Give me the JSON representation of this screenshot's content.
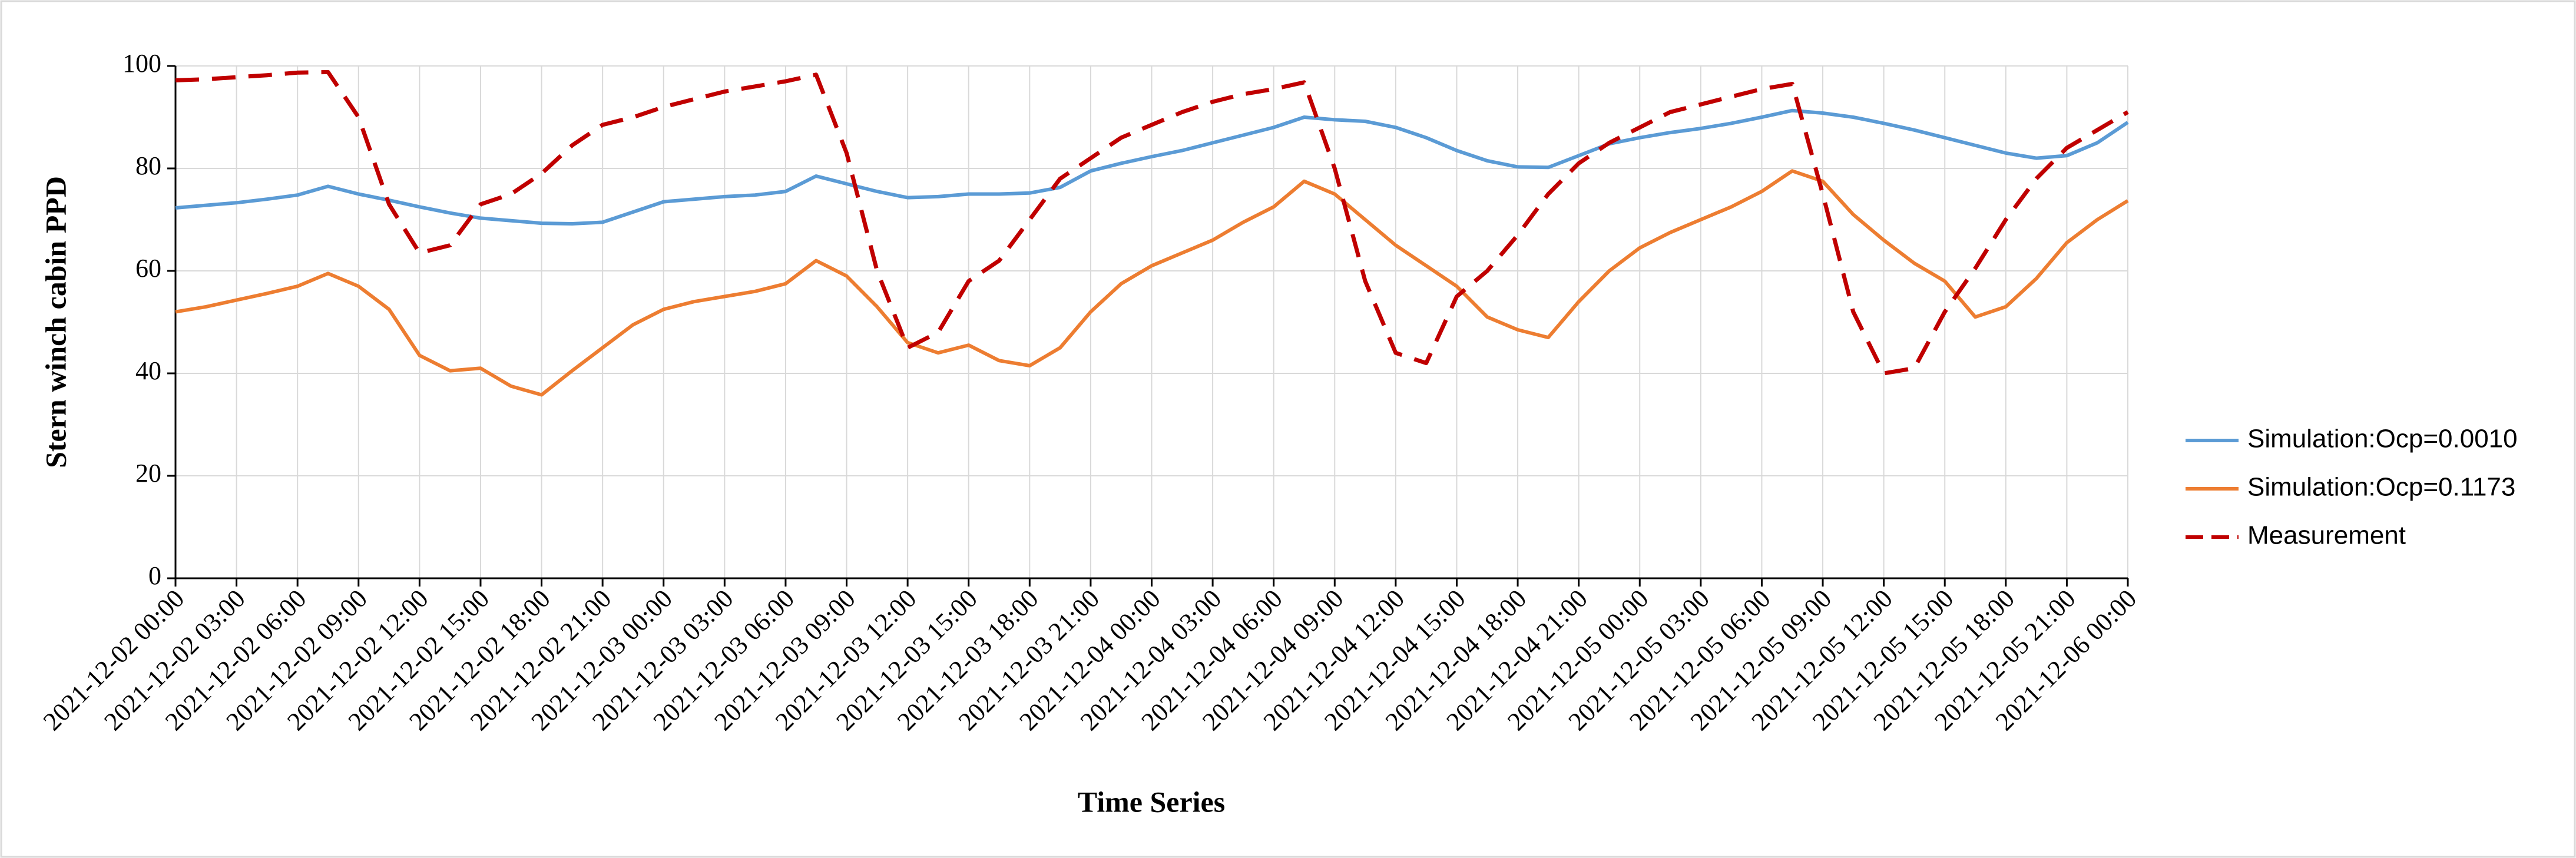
{
  "chart_data": {
    "type": "line",
    "ylabel": "Stern winch cabin PPD",
    "xlabel": "Time Series",
    "x": [
      "2021-12-02 00:00",
      "2021-12-02 01:30",
      "2021-12-02 03:00",
      "2021-12-02 04:30",
      "2021-12-02 06:00",
      "2021-12-02 07:30",
      "2021-12-02 09:00",
      "2021-12-02 10:30",
      "2021-12-02 12:00",
      "2021-12-02 13:30",
      "2021-12-02 15:00",
      "2021-12-02 16:30",
      "2021-12-02 18:00",
      "2021-12-02 19:30",
      "2021-12-02 21:00",
      "2021-12-02 22:30",
      "2021-12-03 00:00",
      "2021-12-03 01:30",
      "2021-12-03 03:00",
      "2021-12-03 04:30",
      "2021-12-03 06:00",
      "2021-12-03 07:30",
      "2021-12-03 09:00",
      "2021-12-03 10:30",
      "2021-12-03 12:00",
      "2021-12-03 13:30",
      "2021-12-03 15:00",
      "2021-12-03 16:30",
      "2021-12-03 18:00",
      "2021-12-03 19:30",
      "2021-12-03 21:00",
      "2021-12-03 22:30",
      "2021-12-04 00:00",
      "2021-12-04 01:30",
      "2021-12-04 03:00",
      "2021-12-04 04:30",
      "2021-12-04 06:00",
      "2021-12-04 07:30",
      "2021-12-04 09:00",
      "2021-12-04 10:30",
      "2021-12-04 12:00",
      "2021-12-04 13:30",
      "2021-12-04 15:00",
      "2021-12-04 16:30",
      "2021-12-04 18:00",
      "2021-12-04 19:30",
      "2021-12-04 21:00",
      "2021-12-04 22:30",
      "2021-12-05 00:00",
      "2021-12-05 01:30",
      "2021-12-05 03:00",
      "2021-12-05 04:30",
      "2021-12-05 06:00",
      "2021-12-05 07:30",
      "2021-12-05 09:00",
      "2021-12-05 10:30",
      "2021-12-05 12:00",
      "2021-12-05 13:30",
      "2021-12-05 15:00",
      "2021-12-05 16:30",
      "2021-12-05 18:00",
      "2021-12-05 19:30",
      "2021-12-05 21:00",
      "2021-12-05 22:30",
      "2021-12-06 00:00"
    ],
    "xticks": [
      "2021-12-02 00:00",
      "2021-12-02 03:00",
      "2021-12-02 06:00",
      "2021-12-02 09:00",
      "2021-12-02 12:00",
      "2021-12-02 15:00",
      "2021-12-02 18:00",
      "2021-12-02 21:00",
      "2021-12-03 00:00",
      "2021-12-03 03:00",
      "2021-12-03 06:00",
      "2021-12-03 09:00",
      "2021-12-03 12:00",
      "2021-12-03 15:00",
      "2021-12-03 18:00",
      "2021-12-03 21:00",
      "2021-12-04 00:00",
      "2021-12-04 03:00",
      "2021-12-04 06:00",
      "2021-12-04 09:00",
      "2021-12-04 12:00",
      "2021-12-04 15:00",
      "2021-12-04 18:00",
      "2021-12-04 21:00",
      "2021-12-05 00:00",
      "2021-12-05 03:00",
      "2021-12-05 06:00",
      "2021-12-05 09:00",
      "2021-12-05 12:00",
      "2021-12-05 15:00",
      "2021-12-05 18:00",
      "2021-12-05 21:00",
      "2021-12-06 00:00"
    ],
    "ylim": [
      0,
      100
    ],
    "yticks": [
      0,
      20,
      40,
      60,
      80,
      100
    ],
    "grid": true,
    "legend": "right",
    "series": [
      {
        "name": "Simulation:Ocp=0.0010",
        "color": "#5b9bd5",
        "linestyle": "solid",
        "values": [
          72.3,
          72.8,
          73.3,
          74,
          74.8,
          76.5,
          75,
          73.8,
          72.5,
          71.3,
          70.3,
          69.8,
          69.3,
          69.2,
          69.5,
          71.5,
          73.5,
          74,
          74.5,
          74.8,
          75.5,
          78.5,
          77,
          75.5,
          74.3,
          74.5,
          75,
          75,
          75.2,
          76.3,
          79.5,
          81,
          82.3,
          83.5,
          85,
          86.5,
          88,
          90,
          89.5,
          89.2,
          88,
          86,
          83.5,
          81.5,
          80.3,
          80.2,
          82.5,
          84.8,
          86,
          87,
          87.8,
          88.8,
          90,
          91.3,
          90.8,
          90,
          88.8,
          87.5,
          86,
          84.5,
          83,
          82,
          82.5,
          85,
          89
        ]
      },
      {
        "name": "Simulation:Ocp=0.1173",
        "color": "#ed7d31",
        "linestyle": "solid",
        "values": [
          52,
          53,
          54.3,
          55.6,
          57,
          59.5,
          57,
          52.5,
          43.5,
          40.5,
          41,
          37.5,
          35.8,
          40.5,
          45,
          49.5,
          52.5,
          54,
          55,
          56,
          57.5,
          62,
          59,
          53,
          46,
          44,
          45.5,
          42.5,
          41.5,
          45,
          52,
          57.5,
          61,
          63.5,
          66,
          69.5,
          72.5,
          77.5,
          75,
          70,
          65,
          61,
          57,
          51,
          48.5,
          47,
          54,
          60,
          64.5,
          67.5,
          70,
          72.5,
          75.5,
          79.5,
          77.5,
          71,
          66,
          61.5,
          58,
          51,
          53,
          58.5,
          65.5,
          70,
          73.7
        ]
      },
      {
        "name": "Measurement",
        "color": "#c00000",
        "linestyle": "dashed",
        "values": [
          97.2,
          97.4,
          97.8,
          98.2,
          98.7,
          98.8,
          90,
          73,
          63.5,
          65,
          73,
          75,
          79,
          84.5,
          88.5,
          90,
          92,
          93.5,
          95,
          96,
          97,
          98.3,
          83,
          60,
          45,
          48,
          58,
          62,
          70,
          78,
          82,
          86,
          88.5,
          91,
          93,
          94.5,
          95.5,
          96.8,
          80,
          58,
          44,
          42,
          55,
          60,
          67,
          75,
          81,
          85,
          88,
          91,
          92.5,
          94,
          95.5,
          96.5,
          75,
          52,
          40,
          41,
          52,
          60.5,
          70,
          78,
          84,
          87.5,
          91
        ]
      }
    ]
  }
}
